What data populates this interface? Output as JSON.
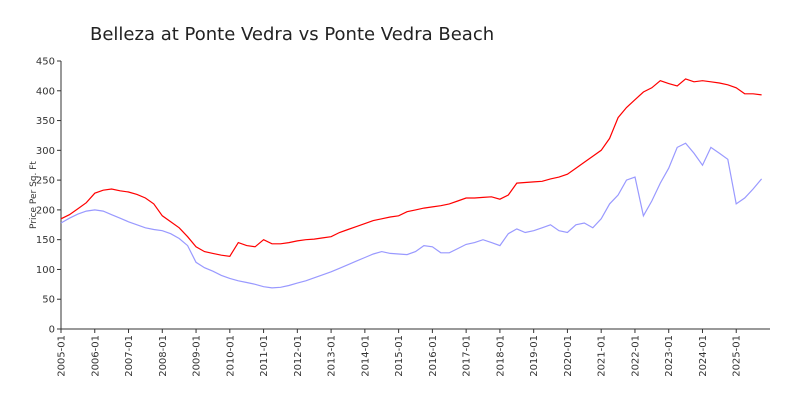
{
  "chart_data": {
    "type": "line",
    "title": "Belleza at Ponte Vedra vs Ponte Vedra Beach",
    "y_label": "Price Per Sq. Ft",
    "x": [
      "2005-01",
      "2005-04",
      "2005-07",
      "2005-10",
      "2006-01",
      "2006-04",
      "2006-07",
      "2006-10",
      "2007-01",
      "2007-04",
      "2007-07",
      "2007-10",
      "2008-01",
      "2008-04",
      "2008-07",
      "2008-10",
      "2009-01",
      "2009-04",
      "2009-07",
      "2009-10",
      "2010-01",
      "2010-04",
      "2010-07",
      "2010-10",
      "2011-01",
      "2011-04",
      "2011-07",
      "2011-10",
      "2012-01",
      "2012-04",
      "2012-07",
      "2012-10",
      "2013-01",
      "2013-04",
      "2013-07",
      "2013-10",
      "2014-01",
      "2014-04",
      "2014-07",
      "2014-10",
      "2015-01",
      "2015-04",
      "2015-07",
      "2015-10",
      "2016-01",
      "2016-04",
      "2016-07",
      "2016-10",
      "2017-01",
      "2017-04",
      "2017-07",
      "2017-10",
      "2018-01",
      "2018-04",
      "2018-07",
      "2018-10",
      "2019-01",
      "2019-04",
      "2019-07",
      "2019-10",
      "2020-01",
      "2020-04",
      "2020-07",
      "2020-10",
      "2021-01",
      "2021-04",
      "2021-07",
      "2021-10",
      "2022-01",
      "2022-04",
      "2022-07",
      "2022-10",
      "2023-01",
      "2023-04",
      "2023-07",
      "2023-10",
      "2024-01",
      "2024-04",
      "2024-07",
      "2024-10",
      "2025-01",
      "2025-04",
      "2025-07",
      "2025-10"
    ],
    "series": [
      {
        "color": "#ff0000",
        "values": [
          185,
          192,
          202,
          212,
          228,
          233,
          235,
          232,
          230,
          226,
          220,
          210,
          190,
          180,
          170,
          155,
          138,
          130,
          127,
          124,
          122,
          145,
          140,
          138,
          150,
          143,
          143,
          145,
          148,
          150,
          151,
          153,
          155,
          162,
          167,
          172,
          177,
          182,
          185,
          188,
          190,
          197,
          200,
          203,
          205,
          207,
          210,
          215,
          220,
          220,
          221,
          222,
          218,
          225,
          245,
          246,
          247,
          248,
          252,
          255,
          260,
          270,
          280,
          290,
          300,
          320,
          355,
          372,
          385,
          398,
          405,
          417,
          412,
          408,
          420,
          415,
          417,
          415,
          413,
          410,
          405,
          395,
          395,
          393
        ]
      },
      {
        "color": "#9999ff",
        "values": [
          178,
          186,
          193,
          198,
          200,
          198,
          192,
          186,
          180,
          175,
          170,
          167,
          165,
          160,
          152,
          140,
          112,
          103,
          97,
          90,
          85,
          81,
          78,
          75,
          71,
          69,
          70,
          73,
          77,
          81,
          86,
          91,
          96,
          102,
          108,
          114,
          120,
          126,
          130,
          127,
          126,
          125,
          130,
          140,
          138,
          128,
          128,
          135,
          142,
          145,
          150,
          145,
          140,
          160,
          168,
          162,
          165,
          170,
          175,
          165,
          162,
          175,
          178,
          170,
          185,
          210,
          225,
          250,
          255,
          190,
          215,
          245,
          270,
          305,
          312,
          295,
          275,
          305,
          295,
          285,
          210,
          220,
          235,
          252
        ]
      }
    ],
    "xlim": [
      "2005-01",
      "2026-01"
    ],
    "xticks": [
      "2005-01",
      "2006-01",
      "2007-01",
      "2008-01",
      "2009-01",
      "2010-01",
      "2011-01",
      "2012-01",
      "2013-01",
      "2014-01",
      "2015-01",
      "2016-01",
      "2017-01",
      "2018-01",
      "2019-01",
      "2020-01",
      "2021-01",
      "2022-01",
      "2023-01",
      "2024-01",
      "2025-01"
    ],
    "ylim": [
      0,
      450
    ],
    "yticks": [
      0,
      50,
      100,
      150,
      200,
      250,
      300,
      350,
      400,
      450
    ]
  }
}
